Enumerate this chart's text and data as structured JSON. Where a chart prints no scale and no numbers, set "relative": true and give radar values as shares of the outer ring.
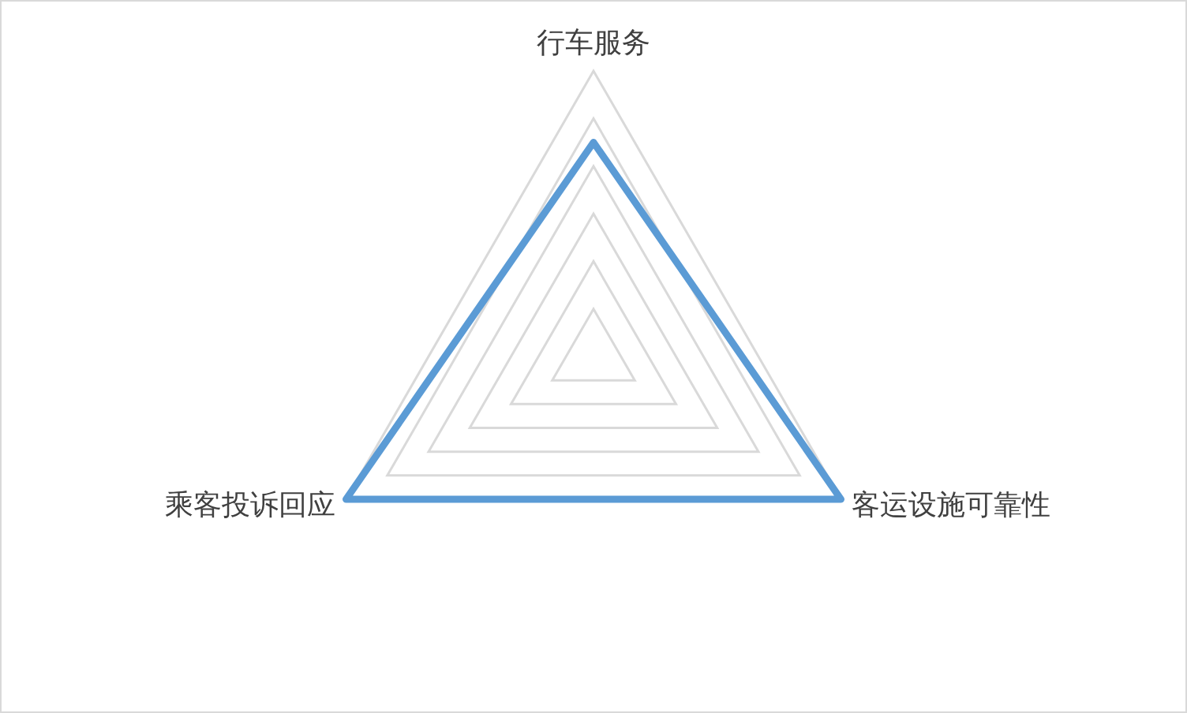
{
  "chart_data": {
    "type": "radar",
    "categories": [
      "行车服务",
      "客运设施可靠性",
      "乘客投诉回应"
    ],
    "relative": true,
    "grid": true,
    "series": [
      {
        "color": "#5b9bd5",
        "values": [
          0.75,
          1,
          1
        ]
      }
    ]
  }
}
